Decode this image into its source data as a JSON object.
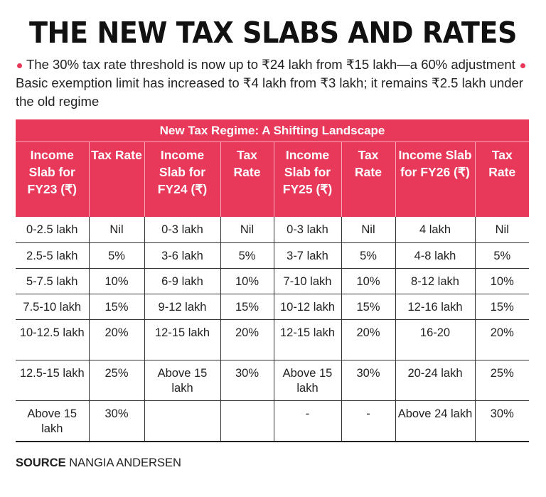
{
  "title": "THE NEW TAX SLABS AND RATES",
  "bullets": [
    "The 30% tax rate threshold is now up to ₹24 lakh from ₹15 lakh—a 60% adjustment",
    "Basic exemption limit has increased to ₹4 lakh from ₹3 lakh; it remains ₹2.5 lakh under the old regime"
  ],
  "accent_color": "#e8395a",
  "table": {
    "caption": "New Tax Regime: A Shifting Landscape",
    "headers": [
      "Income Slab for FY23 (₹)",
      "Tax Rate",
      "Income Slab for FY24 (₹)",
      "Tax Rate",
      "Income Slab for FY25 (₹)",
      "Tax Rate",
      "Income Slab for FY26 (₹)",
      "Tax Rate"
    ],
    "rows": [
      [
        "0-2.5 lakh",
        "Nil",
        "0-3 lakh",
        "Nil",
        "0-3 lakh",
        "Nil",
        "4 lakh",
        "Nil"
      ],
      [
        "2.5-5 lakh",
        "5%",
        "3-6 lakh",
        "5%",
        "3-7 lakh",
        "5%",
        "4-8 lakh",
        "5%"
      ],
      [
        "5-7.5 lakh",
        "10%",
        "6-9 lakh",
        "10%",
        "7-10 lakh",
        "10%",
        "8-12 lakh",
        "10%"
      ],
      [
        "7.5-10 lakh",
        "15%",
        "9-12 lakh",
        "15%",
        "10-12 lakh",
        "15%",
        "12-16 lakh",
        "15%"
      ],
      [
        "10-12.5 lakh",
        "20%",
        "12-15 lakh",
        "20%",
        "12-15 lakh",
        "20%",
        "16-20",
        "20%"
      ],
      [
        "12.5-15 lakh",
        "25%",
        "Above 15 lakh",
        "30%",
        "Above 15 lakh",
        "30%",
        "20-24 lakh",
        "25%"
      ],
      [
        "Above 15 lakh",
        "30%",
        "",
        "",
        "-",
        "-",
        "Above 24 lakh",
        "30%"
      ]
    ]
  },
  "source": {
    "label": "SOURCE",
    "value": "NANGIA ANDERSEN"
  }
}
